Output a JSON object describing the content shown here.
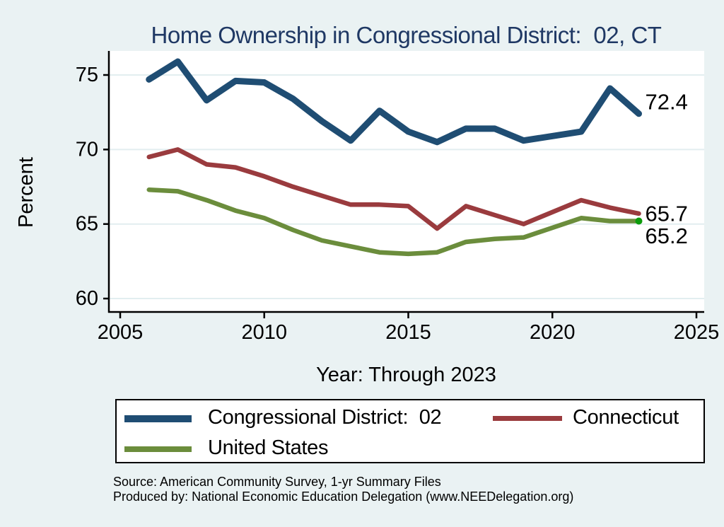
{
  "title": "Home Ownership in Congressional District:  02, CT",
  "chart_data": {
    "type": "line",
    "title": "Home Ownership in Congressional District:  02, CT",
    "xlabel": "Year: Through 2023",
    "ylabel": "Percent",
    "x": [
      2006,
      2007,
      2008,
      2009,
      2010,
      2011,
      2012,
      2013,
      2014,
      2015,
      2016,
      2017,
      2018,
      2019,
      2020,
      2021,
      2022,
      2023
    ],
    "series": [
      {
        "name": "Congressional District:  02",
        "color": "#1f4d73",
        "stroke_width": 9,
        "values": [
          74.7,
          75.9,
          73.3,
          74.6,
          74.5,
          73.4,
          71.9,
          70.6,
          72.6,
          71.2,
          70.5,
          71.4,
          71.4,
          70.6,
          null,
          71.2,
          74.1,
          72.4
        ]
      },
      {
        "name": "Connecticut",
        "color": "#9a3b3e",
        "stroke_width": 6.5,
        "values": [
          69.5,
          70.0,
          69.0,
          68.8,
          68.2,
          67.5,
          66.9,
          66.3,
          66.3,
          66.2,
          64.7,
          66.2,
          65.6,
          65.0,
          null,
          66.6,
          66.1,
          65.7
        ]
      },
      {
        "name": "United States",
        "color": "#6b8d3c",
        "stroke_width": 6.5,
        "values": [
          67.3,
          67.2,
          66.6,
          65.9,
          65.4,
          64.6,
          63.9,
          63.5,
          63.1,
          63.0,
          63.1,
          63.8,
          64.0,
          64.1,
          null,
          65.4,
          65.2,
          65.2
        ],
        "end_marker_color": "#0b9b0b"
      }
    ],
    "end_labels": [
      {
        "series": 0,
        "text": "72.4"
      },
      {
        "series": 1,
        "text": "65.7"
      },
      {
        "series": 2,
        "text": "65.2"
      }
    ],
    "x_ticks": [
      2005,
      2010,
      2015,
      2020,
      2025
    ],
    "y_ticks": [
      75,
      70,
      65,
      60
    ],
    "xlim": [
      2004.6,
      2025.3
    ],
    "ylim": [
      59.3,
      76.6
    ],
    "grid": "horizontal",
    "legend_position": "bottom",
    "note": "no data point for 2020; lines connect 2019 to 2021"
  },
  "legend": {
    "items": [
      {
        "label": "Congressional District:  02",
        "color": "#1f4d73"
      },
      {
        "label": "Connecticut",
        "color": "#9a3b3e"
      },
      {
        "label": "United States",
        "color": "#6b8d3c"
      }
    ]
  },
  "source": {
    "line1": "Source: American Community Survey, 1-yr Summary Files",
    "line2": "Produced by: National Economic Education Delegation (www.NEEDelegation.org)"
  },
  "colors": {
    "background": "#eaf2f3",
    "plot_background": "#ffffff",
    "gridline": "#e2eef0",
    "axis": "#000000",
    "title": "#1f3864",
    "tick_label": "#000000"
  }
}
